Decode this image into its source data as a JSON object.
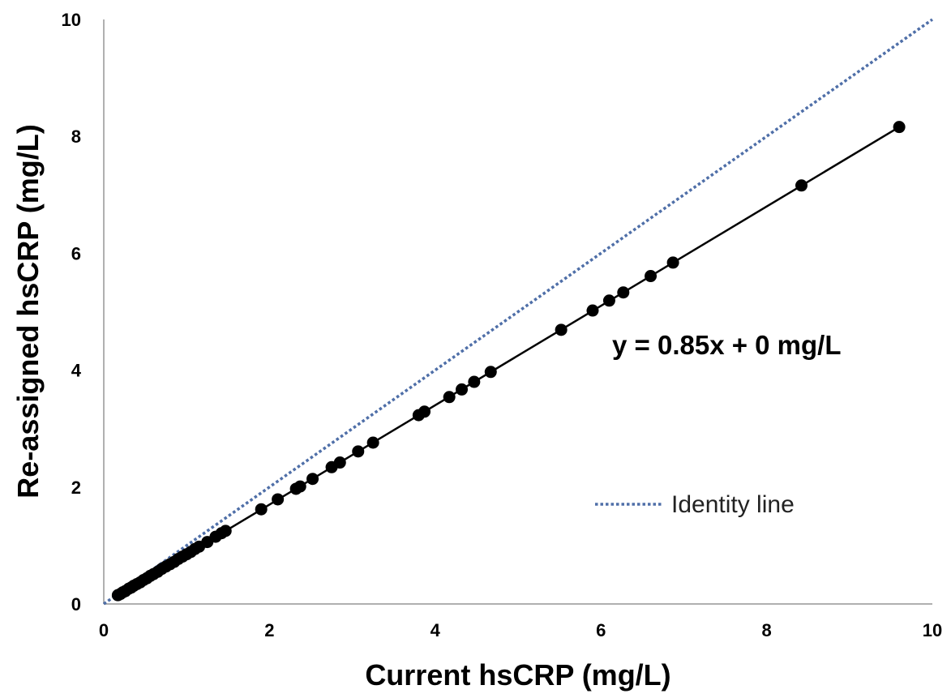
{
  "chart_data": {
    "type": "scatter",
    "title": "",
    "xlabel": "Current hsCRP (mg/L)",
    "ylabel": "Re-assigned hsCRP (mg/L)",
    "xlim": [
      0,
      10
    ],
    "ylim": [
      0,
      10
    ],
    "x_ticks": [
      "0",
      "2",
      "4",
      "6",
      "8",
      "10"
    ],
    "y_ticks": [
      "0",
      "2",
      "4",
      "6",
      "8",
      "10"
    ],
    "grid": false,
    "legend_position": "lower-right",
    "annotation": "y = 0.85x + 0 mg/L",
    "series": [
      {
        "marker_color": "#000000",
        "points": [
          [
            0.17,
            0.15
          ],
          [
            0.2,
            0.17
          ],
          [
            0.23,
            0.2
          ],
          [
            0.26,
            0.22
          ],
          [
            0.3,
            0.26
          ],
          [
            0.33,
            0.28
          ],
          [
            0.36,
            0.31
          ],
          [
            0.4,
            0.34
          ],
          [
            0.44,
            0.37
          ],
          [
            0.48,
            0.41
          ],
          [
            0.52,
            0.44
          ],
          [
            0.56,
            0.48
          ],
          [
            0.6,
            0.51
          ],
          [
            0.65,
            0.55
          ],
          [
            0.7,
            0.6
          ],
          [
            0.75,
            0.64
          ],
          [
            0.8,
            0.68
          ],
          [
            0.85,
            0.72
          ],
          [
            0.9,
            0.77
          ],
          [
            0.95,
            0.81
          ],
          [
            1.0,
            0.85
          ],
          [
            1.05,
            0.89
          ],
          [
            1.1,
            0.94
          ],
          [
            1.15,
            0.98
          ],
          [
            1.25,
            1.06
          ],
          [
            1.35,
            1.15
          ],
          [
            1.42,
            1.21
          ],
          [
            1.47,
            1.25
          ],
          [
            1.9,
            1.62
          ],
          [
            2.1,
            1.79
          ],
          [
            2.32,
            1.97
          ],
          [
            2.37,
            2.01
          ],
          [
            2.52,
            2.14
          ],
          [
            2.75,
            2.34
          ],
          [
            2.85,
            2.42
          ],
          [
            3.07,
            2.61
          ],
          [
            3.25,
            2.76
          ],
          [
            3.8,
            3.23
          ],
          [
            3.87,
            3.29
          ],
          [
            4.17,
            3.54
          ],
          [
            4.32,
            3.67
          ],
          [
            4.47,
            3.8
          ],
          [
            4.67,
            3.97
          ],
          [
            5.52,
            4.69
          ],
          [
            5.9,
            5.02
          ],
          [
            6.1,
            5.19
          ],
          [
            6.27,
            5.33
          ],
          [
            6.6,
            5.61
          ],
          [
            6.87,
            5.84
          ],
          [
            8.42,
            7.16
          ],
          [
            9.6,
            8.16
          ]
        ]
      }
    ],
    "fit_line": {
      "slope": 0.85,
      "intercept": 0,
      "color": "#000000"
    },
    "identity_line": {
      "name": "Identity line",
      "slope": 1,
      "intercept": 0,
      "color": "#4f6fa8"
    }
  }
}
